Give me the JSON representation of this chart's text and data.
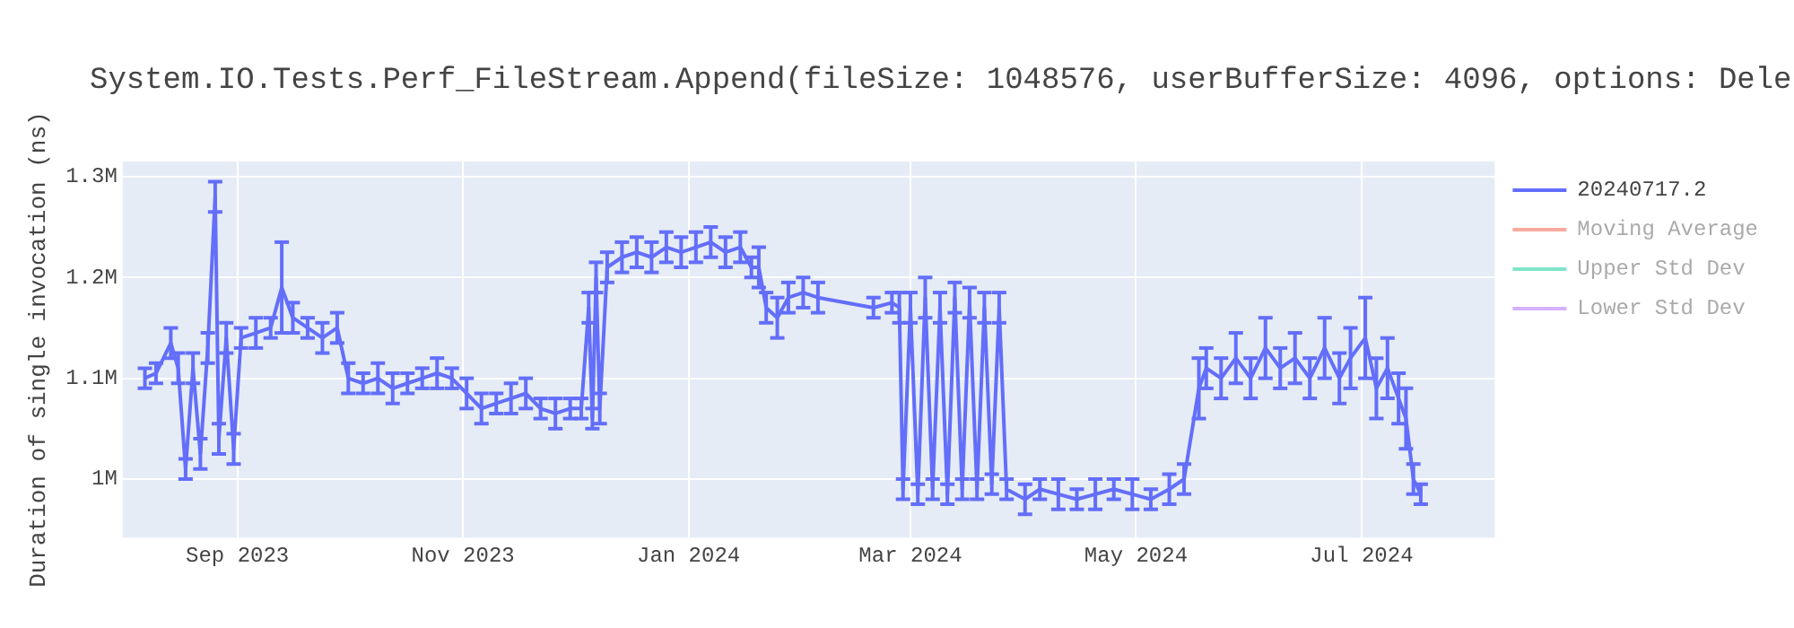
{
  "chart_data": {
    "type": "line",
    "title": "System.IO.Tests.Perf_FileStream.Append(fileSize: 1048576, userBufferSize: 4096, options: Dele",
    "ylabel": "Duration of single invocation (ns)",
    "xlim": [
      "2023-08-01",
      "2024-08-06"
    ],
    "xticks": [
      {
        "value": "2023-09-01",
        "label": "Sep 2023"
      },
      {
        "value": "2023-11-01",
        "label": "Nov 2023"
      },
      {
        "value": "2024-01-01",
        "label": "Jan 2024"
      },
      {
        "value": "2024-03-01",
        "label": "Mar 2024"
      },
      {
        "value": "2024-05-01",
        "label": "May 2024"
      },
      {
        "value": "2024-07-01",
        "label": "Jul 2024"
      }
    ],
    "ylim": [
      942000,
      1315000
    ],
    "yticks": [
      {
        "value": 1000000,
        "label": "1M"
      },
      {
        "value": 1100000,
        "label": "1.1M"
      },
      {
        "value": 1200000,
        "label": "1.2M"
      },
      {
        "value": 1300000,
        "label": "1.3M"
      }
    ],
    "grid": true,
    "legend": "right",
    "series": [
      {
        "name": "20240717.2",
        "color": "#636efa",
        "x": [
          "2023-08-07",
          "2023-08-10",
          "2023-08-14",
          "2023-08-16",
          "2023-08-18",
          "2023-08-20",
          "2023-08-22",
          "2023-08-24",
          "2023-08-26",
          "2023-08-27",
          "2023-08-29",
          "2023-08-31",
          "2023-09-02",
          "2023-09-06",
          "2023-09-10",
          "2023-09-13",
          "2023-09-16",
          "2023-09-20",
          "2023-09-24",
          "2023-09-28",
          "2023-10-01",
          "2023-10-05",
          "2023-10-09",
          "2023-10-13",
          "2023-10-17",
          "2023-10-21",
          "2023-10-25",
          "2023-10-29",
          "2023-11-02",
          "2023-11-06",
          "2023-11-10",
          "2023-11-14",
          "2023-11-18",
          "2023-11-22",
          "2023-11-26",
          "2023-11-30",
          "2023-12-03",
          "2023-12-05",
          "2023-12-06",
          "2023-12-07",
          "2023-12-08",
          "2023-12-10",
          "2023-12-14",
          "2023-12-18",
          "2023-12-22",
          "2023-12-26",
          "2023-12-30",
          "2024-01-03",
          "2024-01-07",
          "2024-01-11",
          "2024-01-15",
          "2024-01-18",
          "2024-01-20",
          "2024-01-22",
          "2024-01-25",
          "2024-01-28",
          "2024-02-01",
          "2024-02-05",
          "2024-02-20",
          "2024-02-25",
          "2024-02-27",
          "2024-02-28",
          "2024-03-01",
          "2024-03-03",
          "2024-03-05",
          "2024-03-07",
          "2024-03-09",
          "2024-03-11",
          "2024-03-13",
          "2024-03-15",
          "2024-03-17",
          "2024-03-19",
          "2024-03-21",
          "2024-03-23",
          "2024-03-25",
          "2024-03-27",
          "2024-04-01",
          "2024-04-05",
          "2024-04-10",
          "2024-04-15",
          "2024-04-20",
          "2024-04-25",
          "2024-04-30",
          "2024-05-05",
          "2024-05-10",
          "2024-05-14",
          "2024-05-18",
          "2024-05-20",
          "2024-05-24",
          "2024-05-28",
          "2024-06-01",
          "2024-06-05",
          "2024-06-09",
          "2024-06-13",
          "2024-06-17",
          "2024-06-21",
          "2024-06-25",
          "2024-06-28",
          "2024-07-02",
          "2024-07-05",
          "2024-07-08",
          "2024-07-11",
          "2024-07-13",
          "2024-07-15",
          "2024-07-17"
        ],
        "values": [
          1100000,
          1105000,
          1135000,
          1110000,
          1010000,
          1110000,
          1025000,
          1130000,
          1280000,
          1040000,
          1140000,
          1030000,
          1140000,
          1145000,
          1150000,
          1190000,
          1160000,
          1150000,
          1140000,
          1150000,
          1100000,
          1095000,
          1100000,
          1090000,
          1095000,
          1100000,
          1105000,
          1100000,
          1085000,
          1070000,
          1075000,
          1080000,
          1085000,
          1070000,
          1065000,
          1070000,
          1070000,
          1170000,
          1060000,
          1200000,
          1070000,
          1210000,
          1220000,
          1225000,
          1220000,
          1230000,
          1225000,
          1230000,
          1235000,
          1225000,
          1230000,
          1210000,
          1210000,
          1170000,
          1160000,
          1180000,
          1185000,
          1180000,
          1170000,
          1175000,
          1170000,
          990000,
          1170000,
          985000,
          1180000,
          990000,
          1170000,
          985000,
          1180000,
          990000,
          1175000,
          990000,
          1170000,
          995000,
          1170000,
          990000,
          980000,
          990000,
          985000,
          980000,
          985000,
          990000,
          985000,
          980000,
          990000,
          1000000,
          1090000,
          1110000,
          1100000,
          1120000,
          1100000,
          1130000,
          1110000,
          1120000,
          1100000,
          1130000,
          1100000,
          1120000,
          1140000,
          1090000,
          1110000,
          1080000,
          1060000,
          1000000,
          985000
        ],
        "errors": [
          10000,
          10000,
          15000,
          15000,
          10000,
          15000,
          15000,
          15000,
          15000,
          15000,
          15000,
          15000,
          10000,
          15000,
          10000,
          45000,
          15000,
          10000,
          15000,
          15000,
          15000,
          10000,
          15000,
          15000,
          10000,
          10000,
          15000,
          10000,
          15000,
          15000,
          10000,
          15000,
          15000,
          10000,
          15000,
          10000,
          10000,
          15000,
          10000,
          15000,
          15000,
          15000,
          15000,
          15000,
          15000,
          15000,
          15000,
          15000,
          15000,
          15000,
          15000,
          10000,
          20000,
          15000,
          20000,
          15000,
          15000,
          15000,
          10000,
          10000,
          15000,
          10000,
          15000,
          10000,
          20000,
          10000,
          15000,
          10000,
          15000,
          10000,
          15000,
          10000,
          15000,
          10000,
          15000,
          10000,
          15000,
          10000,
          15000,
          10000,
          15000,
          10000,
          15000,
          10000,
          15000,
          15000,
          30000,
          20000,
          20000,
          25000,
          20000,
          30000,
          20000,
          25000,
          20000,
          30000,
          25000,
          30000,
          40000,
          30000,
          30000,
          25000,
          30000,
          15000,
          10000
        ]
      },
      {
        "name": "Moving Average",
        "color": "#ef553b"
      },
      {
        "name": "Upper Std Dev",
        "color": "#00cc96"
      },
      {
        "name": "Lower Std Dev",
        "color": "#ab63fa"
      }
    ]
  }
}
